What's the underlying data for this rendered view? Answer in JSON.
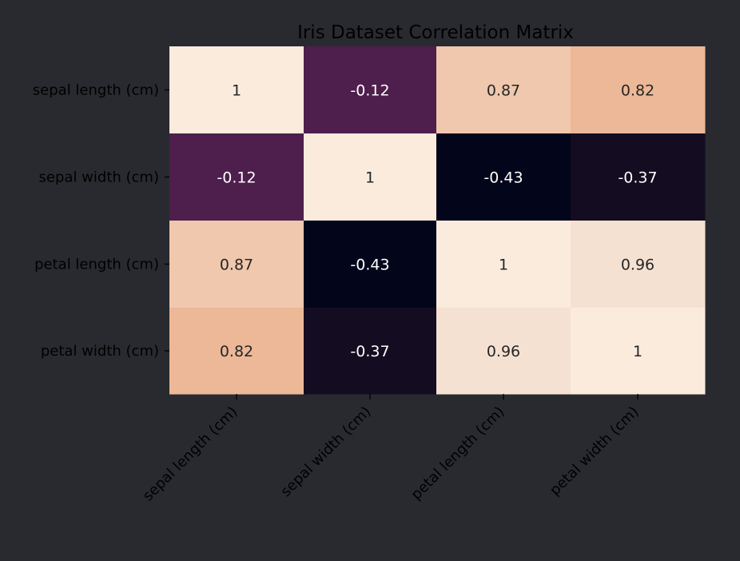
{
  "chart_data": {
    "type": "heatmap",
    "title": "Iris Dataset Correlation Matrix",
    "row_labels": [
      "sepal length (cm)",
      "sepal width (cm)",
      "petal length (cm)",
      "petal width (cm)"
    ],
    "column_labels": [
      "sepal length (cm)",
      "sepal width (cm)",
      "petal length (cm)",
      "petal width (cm)"
    ],
    "values": [
      [
        1,
        -0.12,
        0.87,
        0.82
      ],
      [
        -0.12,
        1,
        -0.43,
        -0.37
      ],
      [
        0.87,
        -0.43,
        1,
        0.96
      ],
      [
        0.82,
        -0.37,
        0.96,
        1
      ]
    ],
    "colorbar": false,
    "colormap": "rocket",
    "annotated": true,
    "grid": false
  },
  "colors": {
    "background": "#282a2f",
    "text": "#000000",
    "annotation_dark": "#262626",
    "annotation_light": "#ffffff",
    "cell_colors": [
      [
        "#faebdd",
        "#4e1e4d",
        "#f0c8ad",
        "#edb897"
      ],
      [
        "#4e1e4d",
        "#faebdd",
        "#03051a",
        "#140d21"
      ],
      [
        "#f0c8ad",
        "#03051a",
        "#faebdd",
        "#f5e1d2"
      ],
      [
        "#edb897",
        "#140d21",
        "#f5e1d2",
        "#faebdd"
      ]
    ]
  }
}
